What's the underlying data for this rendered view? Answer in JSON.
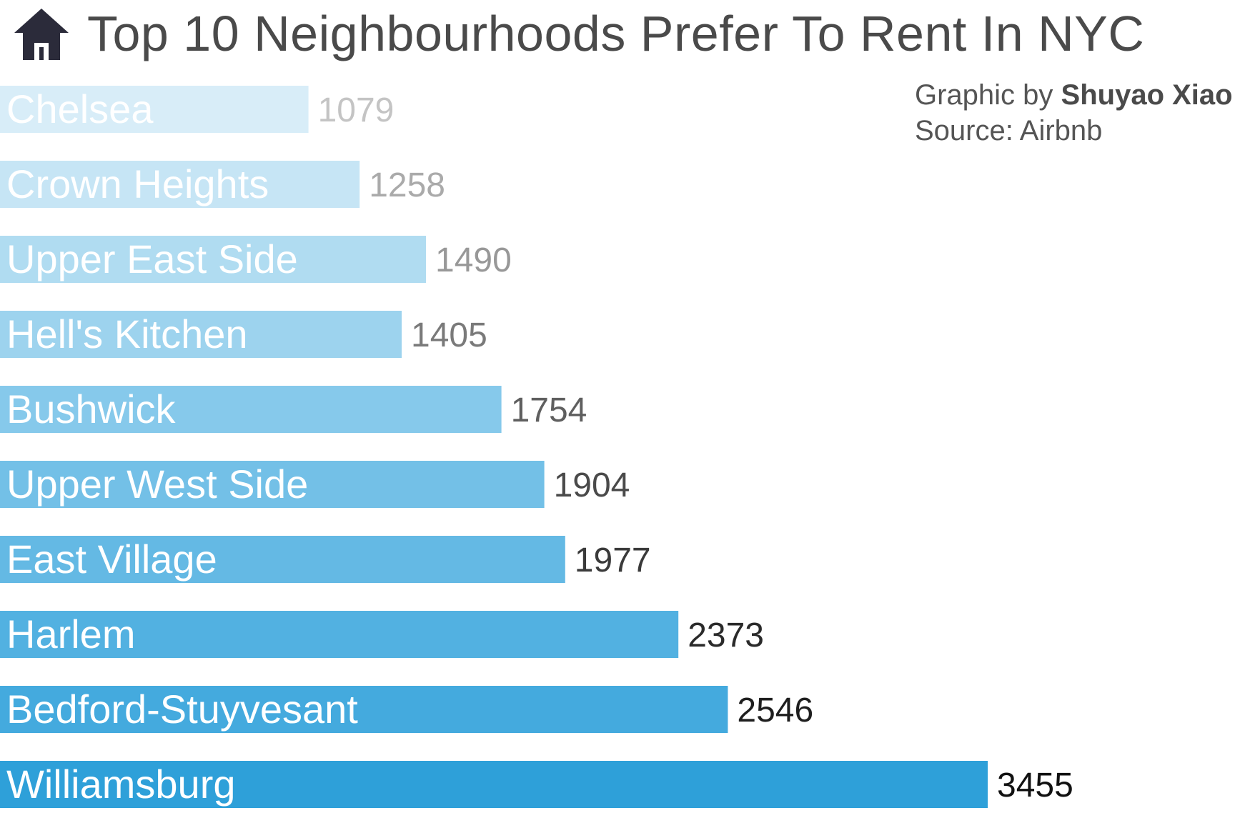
{
  "header": {
    "icon": "house-icon",
    "title": "Top 10 Neighbourhoods Prefer To Rent In NYC"
  },
  "credit": {
    "graphic_prefix": "Graphic by ",
    "author": "Shuyao Xiao",
    "source": "Source: Airbnb"
  },
  "chart_data": {
    "type": "bar",
    "orientation": "horizontal",
    "categories": [
      "Chelsea",
      "Crown Heights",
      "Upper East Side",
      "Hell's Kitchen",
      "Bushwick",
      "Upper West Side",
      "East Village",
      "Harlem",
      "Bedford-Stuyvesant",
      "Williamsburg"
    ],
    "values": [
      1079,
      1258,
      1490,
      1405,
      1754,
      1904,
      1977,
      2373,
      2546,
      3455
    ],
    "bar_colors": [
      "#d8edf8",
      "#c6e5f5",
      "#b0dcf1",
      "#9dd3ee",
      "#86c9eb",
      "#73c0e7",
      "#64b9e4",
      "#52b1e1",
      "#44aade",
      "#2ea0d9"
    ],
    "value_label_colors": [
      "#c4c4c4",
      "#aaaaaa",
      "#989898",
      "#7a7a7a",
      "#5f5f5f",
      "#4a4a4a",
      "#3a3a3a",
      "#2a2a2a",
      "#1e1e1e",
      "#111111"
    ],
    "title": "Top 10 Neighbourhoods Prefer To Rent In NYC",
    "xlabel": "",
    "ylabel": "",
    "grid": false,
    "legend": "none"
  }
}
